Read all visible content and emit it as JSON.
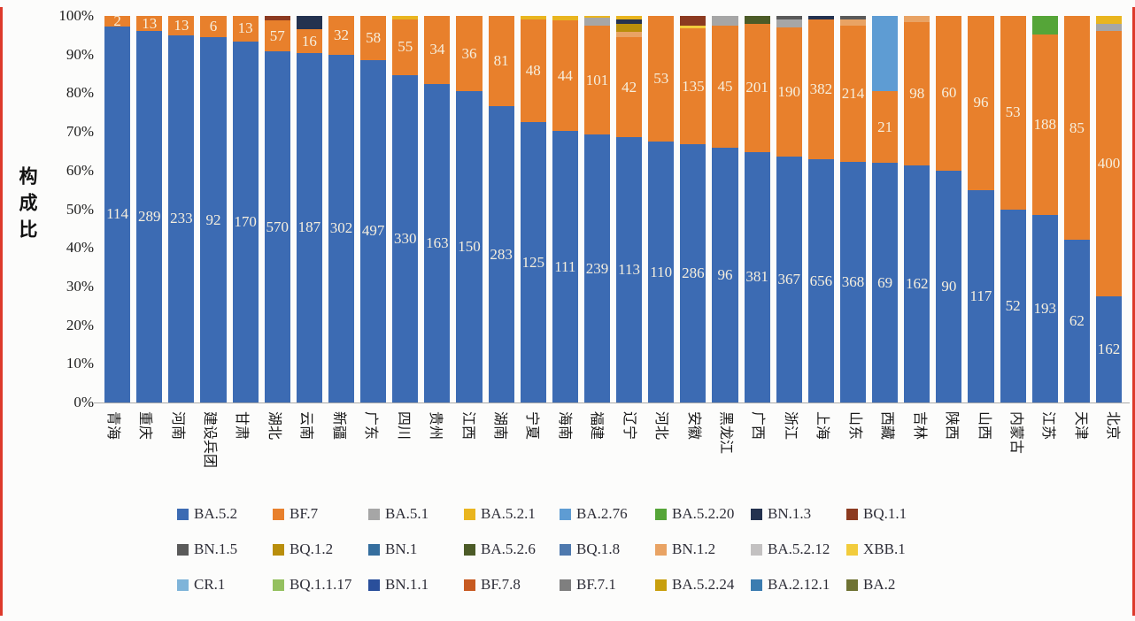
{
  "page": {
    "edge_line_color": "#dd3a2b"
  },
  "chart_data": {
    "type": "bar",
    "subtype": "stacked-100",
    "title": "",
    "ylabel": "构成比",
    "xlabel": "",
    "ylim": [
      0,
      100
    ],
    "grid": false,
    "legend_position": "bottom",
    "y_ticks": [
      "100%",
      "90%",
      "80%",
      "70%",
      "60%",
      "50%",
      "40%",
      "30%",
      "20%",
      "10%",
      "0%"
    ],
    "legend": [
      {
        "name": "BA.5.2",
        "color": "#3c6bb3"
      },
      {
        "name": "BF.7",
        "color": "#e8802c"
      },
      {
        "name": "BA.5.1",
        "color": "#a6a6a6"
      },
      {
        "name": "BA.5.2.1",
        "color": "#e9b51f"
      },
      {
        "name": "BA.2.76",
        "color": "#5e9cd3"
      },
      {
        "name": "BA.5.2.20",
        "color": "#55a538"
      },
      {
        "name": "BN.1.3",
        "color": "#24324f"
      },
      {
        "name": "BQ.1.1",
        "color": "#8c3a20"
      },
      {
        "name": "BN.1.5",
        "color": "#5a5a5a"
      },
      {
        "name": "BQ.1.2",
        "color": "#b98e0b"
      },
      {
        "name": "BN.1",
        "color": "#356e9e"
      },
      {
        "name": "BA.5.2.6",
        "color": "#4c5b27"
      },
      {
        "name": "BQ.1.8",
        "color": "#4e79ae"
      },
      {
        "name": "BN.1.2",
        "color": "#e9a364"
      },
      {
        "name": "BA.5.2.12",
        "color": "#c3c1c1"
      },
      {
        "name": "XBB.1",
        "color": "#f2cc3c"
      },
      {
        "name": "CR.1",
        "color": "#7fb4d9"
      },
      {
        "name": "BQ.1.1.17",
        "color": "#94c05f"
      },
      {
        "name": "BN.1.1",
        "color": "#2a4f9b"
      },
      {
        "name": "BF.7.8",
        "color": "#c75a21"
      },
      {
        "name": "BF.7.1",
        "color": "#7f7f7f"
      },
      {
        "name": "BA.5.2.24",
        "color": "#c89f0d"
      },
      {
        "name": "BA.2.12.1",
        "color": "#3b7cb0"
      },
      {
        "name": "BA.2",
        "color": "#6e7233"
      }
    ],
    "bars": [
      {
        "province": "青海",
        "segments": [
          {
            "variant": "BA.5.2",
            "pct": 97.3,
            "label": "114"
          },
          {
            "variant": "BF.7",
            "pct": 2.7,
            "label": "2"
          }
        ]
      },
      {
        "province": "重庆",
        "segments": [
          {
            "variant": "BA.5.2",
            "pct": 96.1,
            "label": "289"
          },
          {
            "variant": "BF.7",
            "pct": 3.9,
            "label": "13"
          }
        ]
      },
      {
        "province": "河南",
        "segments": [
          {
            "variant": "BA.5.2",
            "pct": 95.0,
            "label": "233"
          },
          {
            "variant": "BF.7",
            "pct": 5.0,
            "label": "13"
          }
        ]
      },
      {
        "province": "建设兵团",
        "segments": [
          {
            "variant": "BA.5.2",
            "pct": 94.5,
            "label": "92"
          },
          {
            "variant": "BF.7",
            "pct": 5.5,
            "label": "6"
          }
        ]
      },
      {
        "province": "甘肃",
        "segments": [
          {
            "variant": "BA.5.2",
            "pct": 93.4,
            "label": "170"
          },
          {
            "variant": "BF.7",
            "pct": 6.6,
            "label": "13"
          }
        ]
      },
      {
        "province": "湖北",
        "segments": [
          {
            "variant": "BA.5.2",
            "pct": 90.8,
            "label": "570"
          },
          {
            "variant": "BF.7",
            "pct": 8.0,
            "label": "57"
          },
          {
            "variant": "BQ.1.1",
            "pct": 1.2
          }
        ]
      },
      {
        "province": "云南",
        "segments": [
          {
            "variant": "BA.5.2",
            "pct": 90.4,
            "label": "187"
          },
          {
            "variant": "BF.7",
            "pct": 6.1,
            "label": "16"
          },
          {
            "variant": "BN.1.3",
            "pct": 3.5
          }
        ]
      },
      {
        "province": "新疆",
        "segments": [
          {
            "variant": "BA.5.2",
            "pct": 90.0,
            "label": "302"
          },
          {
            "variant": "BF.7",
            "pct": 10.0,
            "label": "32"
          }
        ]
      },
      {
        "province": "广东",
        "segments": [
          {
            "variant": "BA.5.2",
            "pct": 88.6,
            "label": "497"
          },
          {
            "variant": "BF.7",
            "pct": 11.4,
            "label": "58"
          }
        ]
      },
      {
        "province": "四川",
        "segments": [
          {
            "variant": "BA.5.2",
            "pct": 84.7,
            "label": "330"
          },
          {
            "variant": "BF.7",
            "pct": 14.5,
            "label": "55"
          },
          {
            "variant": "BA.5.2.1",
            "pct": 0.8
          }
        ]
      },
      {
        "province": "贵州",
        "segments": [
          {
            "variant": "BA.5.2",
            "pct": 82.4,
            "label": "163"
          },
          {
            "variant": "BF.7",
            "pct": 17.6,
            "label": "34"
          }
        ]
      },
      {
        "province": "江西",
        "segments": [
          {
            "variant": "BA.5.2",
            "pct": 80.5,
            "label": "150"
          },
          {
            "variant": "BF.7",
            "pct": 19.5,
            "label": "36"
          }
        ]
      },
      {
        "province": "湖南",
        "segments": [
          {
            "variant": "BA.5.2",
            "pct": 76.6,
            "label": "283"
          },
          {
            "variant": "BF.7",
            "pct": 23.4,
            "label": "81"
          }
        ]
      },
      {
        "province": "宁夏",
        "segments": [
          {
            "variant": "BA.5.2",
            "pct": 72.5,
            "label": "125"
          },
          {
            "variant": "BF.7",
            "pct": 26.7,
            "label": "48"
          },
          {
            "variant": "BA.5.2.1",
            "pct": 0.8
          }
        ]
      },
      {
        "province": "海南",
        "segments": [
          {
            "variant": "BA.5.2",
            "pct": 70.2,
            "label": "111"
          },
          {
            "variant": "BF.7",
            "pct": 28.6,
            "label": "44"
          },
          {
            "variant": "BA.5.2.1",
            "pct": 1.2
          }
        ]
      },
      {
        "province": "福建",
        "segments": [
          {
            "variant": "BA.5.2",
            "pct": 69.3,
            "label": "239"
          },
          {
            "variant": "BF.7",
            "pct": 28.2,
            "label": "101"
          },
          {
            "variant": "BA.5.1",
            "pct": 2.0
          },
          {
            "variant": "BA.5.2.1",
            "pct": 0.5
          }
        ]
      },
      {
        "province": "辽宁",
        "segments": [
          {
            "variant": "BA.5.2",
            "pct": 68.6,
            "label": "113"
          },
          {
            "variant": "BF.7",
            "pct": 25.9,
            "label": "42"
          },
          {
            "variant": "BN.1.2",
            "pct": 1.5
          },
          {
            "variant": "BQ.1.2",
            "pct": 2.0
          },
          {
            "variant": "BN.1.3",
            "pct": 1.0
          },
          {
            "variant": "BA.5.2.1",
            "pct": 1.0
          }
        ]
      },
      {
        "province": "河北",
        "segments": [
          {
            "variant": "BA.5.2",
            "pct": 67.5,
            "label": "110"
          },
          {
            "variant": "BF.7",
            "pct": 32.5,
            "label": "53"
          }
        ]
      },
      {
        "province": "安徽",
        "segments": [
          {
            "variant": "BA.5.2",
            "pct": 66.8,
            "label": "286"
          },
          {
            "variant": "BF.7",
            "pct": 30.0,
            "label": "135"
          },
          {
            "variant": "XBB.1",
            "pct": 0.8
          },
          {
            "variant": "BQ.1.1",
            "pct": 2.4
          }
        ]
      },
      {
        "province": "黑龙江",
        "segments": [
          {
            "variant": "BA.5.2",
            "pct": 65.9,
            "label": "96"
          },
          {
            "variant": "BF.7",
            "pct": 31.6,
            "label": "45"
          },
          {
            "variant": "BA.5.1",
            "pct": 2.5
          }
        ]
      },
      {
        "province": "广西",
        "segments": [
          {
            "variant": "BA.5.2",
            "pct": 64.8,
            "label": "381"
          },
          {
            "variant": "BF.7",
            "pct": 33.2,
            "label": "201"
          },
          {
            "variant": "BA.5.2.6",
            "pct": 2.0
          }
        ]
      },
      {
        "province": "浙江",
        "segments": [
          {
            "variant": "BA.5.2",
            "pct": 63.6,
            "label": "367"
          },
          {
            "variant": "BF.7",
            "pct": 33.4,
            "label": "190"
          },
          {
            "variant": "BA.5.1",
            "pct": 2.0
          },
          {
            "variant": "BN.1.5",
            "pct": 1.0
          }
        ]
      },
      {
        "province": "上海",
        "segments": [
          {
            "variant": "BA.5.2",
            "pct": 62.9,
            "label": "656"
          },
          {
            "variant": "BF.7",
            "pct": 36.1,
            "label": "382"
          },
          {
            "variant": "BN.1.3",
            "pct": 1.0
          }
        ]
      },
      {
        "province": "山东",
        "segments": [
          {
            "variant": "BA.5.2",
            "pct": 62.2,
            "label": "368"
          },
          {
            "variant": "BF.7",
            "pct": 35.3,
            "label": "214"
          },
          {
            "variant": "BN.1.2",
            "pct": 1.5
          },
          {
            "variant": "BN.1.5",
            "pct": 1.0
          }
        ]
      },
      {
        "province": "西藏",
        "segments": [
          {
            "variant": "BA.5.2",
            "pct": 62.0,
            "label": "69"
          },
          {
            "variant": "BF.7",
            "pct": 18.5,
            "label": "21"
          },
          {
            "variant": "BA.2.76",
            "pct": 19.5
          }
        ]
      },
      {
        "province": "吉林",
        "segments": [
          {
            "variant": "BA.5.2",
            "pct": 61.3,
            "label": "162"
          },
          {
            "variant": "BF.7",
            "pct": 37.2,
            "label": "98"
          },
          {
            "variant": "BN.1.2",
            "pct": 1.5
          }
        ]
      },
      {
        "province": "陕西",
        "segments": [
          {
            "variant": "BA.5.2",
            "pct": 60.0,
            "label": "90"
          },
          {
            "variant": "BF.7",
            "pct": 40.0,
            "label": "60"
          }
        ]
      },
      {
        "province": "山西",
        "segments": [
          {
            "variant": "BA.5.2",
            "pct": 55.0,
            "label": "117"
          },
          {
            "variant": "BF.7",
            "pct": 45.0,
            "label": "96"
          }
        ]
      },
      {
        "province": "内蒙古",
        "segments": [
          {
            "variant": "BA.5.2",
            "pct": 50.0,
            "label": "52"
          },
          {
            "variant": "BF.7",
            "pct": 50.0,
            "label": "53"
          }
        ]
      },
      {
        "province": "江苏",
        "segments": [
          {
            "variant": "BA.5.2",
            "pct": 48.5,
            "label": "193"
          },
          {
            "variant": "BF.7",
            "pct": 46.8,
            "label": "188"
          },
          {
            "variant": "BA.5.2.20",
            "pct": 4.7
          }
        ]
      },
      {
        "province": "天津",
        "segments": [
          {
            "variant": "BA.5.2",
            "pct": 42.0,
            "label": "62"
          },
          {
            "variant": "BF.7",
            "pct": 58.0,
            "label": "85"
          }
        ]
      },
      {
        "province": "北京",
        "segments": [
          {
            "variant": "BA.5.2",
            "pct": 27.5,
            "label": "162"
          },
          {
            "variant": "BF.7",
            "pct": 68.5,
            "label": "400"
          },
          {
            "variant": "BA.5.1",
            "pct": 2.0
          },
          {
            "variant": "BA.5.2.1",
            "pct": 2.0
          }
        ]
      }
    ]
  }
}
